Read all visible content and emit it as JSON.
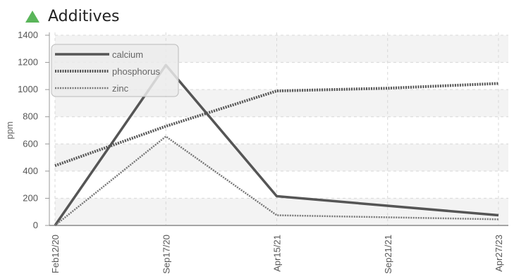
{
  "header": {
    "title": "Additives",
    "icon": "green-triangle-icon",
    "icon_color": "#5ab55a"
  },
  "chart_data": {
    "type": "line",
    "title": "Additives",
    "xlabel": "",
    "ylabel": "ppm",
    "categories": [
      "Feb12/20",
      "Sep17/20",
      "Apr15/21",
      "Sep21/21",
      "Apr27/23"
    ],
    "ylim": [
      0,
      1400
    ],
    "yticks": [
      0,
      200,
      400,
      600,
      800,
      1000,
      1200,
      1400
    ],
    "grid": true,
    "legend_position": "top-left",
    "series": [
      {
        "name": "calcium",
        "style": "solid",
        "color": "#555555",
        "values": [
          0,
          1180,
          215,
          null,
          75
        ]
      },
      {
        "name": "phosphorus",
        "style": "dotted-thick",
        "color": "#555555",
        "values": [
          440,
          730,
          990,
          1010,
          1045
        ]
      },
      {
        "name": "zinc",
        "style": "dotted-thin",
        "color": "#777777",
        "values": [
          0,
          655,
          75,
          null,
          45
        ]
      }
    ]
  }
}
